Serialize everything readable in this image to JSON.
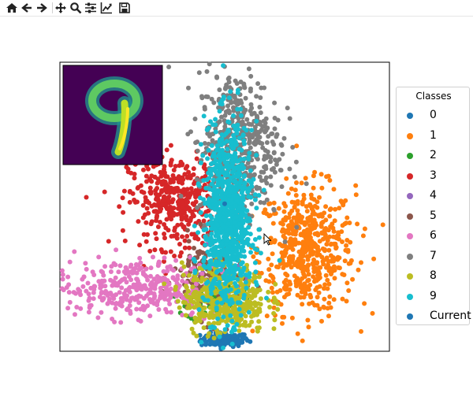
{
  "toolbar": {
    "buttons": [
      {
        "name": "home-icon"
      },
      {
        "name": "back-icon"
      },
      {
        "name": "forward-icon"
      },
      {
        "name": "pan-icon"
      },
      {
        "name": "zoom-icon"
      },
      {
        "name": "configure-subplots-icon"
      },
      {
        "name": "edit-axis-icon"
      },
      {
        "name": "save-icon"
      }
    ]
  },
  "chart_data": {
    "type": "scatter",
    "title": "",
    "xlabel": "",
    "ylabel": "",
    "axes_ticks": "none",
    "grid": false,
    "legend": {
      "title": "Classes",
      "position": "right"
    },
    "series": [
      {
        "name": "0",
        "color": "#1f77b4",
        "clusters": [
          {
            "cx": 0.0,
            "cy": -4.6,
            "sx": 0.35,
            "sy": 0.12,
            "n": 120
          }
        ]
      },
      {
        "name": "1",
        "color": "#ff7f0e",
        "clusters": [
          {
            "cx": 2.4,
            "cy": -1.5,
            "sx": 0.7,
            "sy": 1.1,
            "n": 550
          }
        ]
      },
      {
        "name": "2",
        "color": "#2ca02c",
        "clusters": [
          {
            "cx": -0.3,
            "cy": -3.2,
            "sx": 0.4,
            "sy": 0.4,
            "n": 90
          }
        ]
      },
      {
        "name": "3",
        "color": "#d62728",
        "clusters": [
          {
            "cx": -1.4,
            "cy": 0.2,
            "sx": 0.7,
            "sy": 0.8,
            "n": 420
          }
        ]
      },
      {
        "name": "4",
        "color": "#9467bd",
        "clusters": [
          {
            "cx": -0.2,
            "cy": -2.2,
            "sx": 0.3,
            "sy": 0.4,
            "n": 30
          }
        ]
      },
      {
        "name": "5",
        "color": "#8c564b",
        "clusters": [
          {
            "cx": -0.5,
            "cy": -2.5,
            "sx": 0.5,
            "sy": 0.7,
            "n": 160
          }
        ]
      },
      {
        "name": "6",
        "color": "#e377c2",
        "clusters": [
          {
            "cx": -2.6,
            "cy": -2.8,
            "sx": 1.2,
            "sy": 0.5,
            "n": 380
          }
        ]
      },
      {
        "name": "7",
        "color": "#7f7f7f",
        "clusters": [
          {
            "cx": 0.4,
            "cy": 2.1,
            "sx": 0.6,
            "sy": 1.3,
            "n": 500
          }
        ]
      },
      {
        "name": "8",
        "color": "#bcbd22",
        "clusters": [
          {
            "cx": 0.0,
            "cy": -3.2,
            "sx": 0.6,
            "sy": 0.6,
            "n": 420
          }
        ]
      },
      {
        "name": "9",
        "color": "#17becf",
        "clusters": [
          {
            "cx": 0.1,
            "cy": -0.4,
            "sx": 0.35,
            "sy": 1.6,
            "n": 900
          }
        ]
      },
      {
        "name": "Current",
        "color": "#1f77b4",
        "points": [
          {
            "x": 0.0,
            "y": 0.1
          }
        ]
      }
    ],
    "xlim": [
      -4.8,
      4.8
    ],
    "ylim": [
      -5.0,
      5.0
    ],
    "inset": {
      "type": "image",
      "content": "digit 9 heatmap (viridis)"
    }
  }
}
